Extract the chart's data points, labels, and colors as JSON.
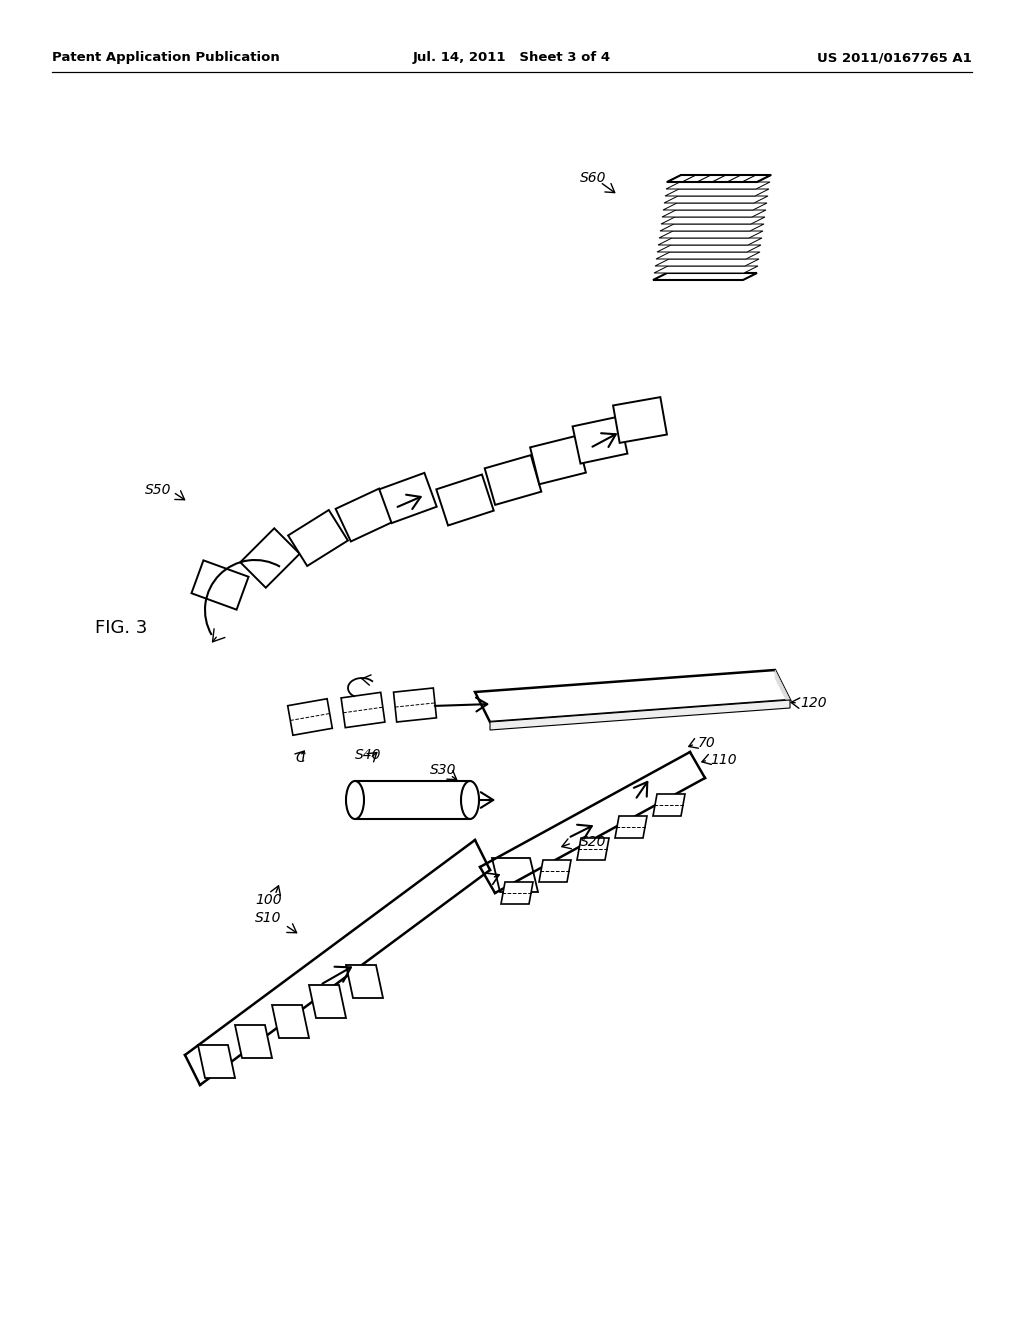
{
  "title_left": "Patent Application Publication",
  "title_center": "Jul. 14, 2011   Sheet 3 of 4",
  "title_right": "US 2011/0167765 A1",
  "fig_label": "FIG. 3",
  "background_color": "#ffffff",
  "line_color": "#000000"
}
